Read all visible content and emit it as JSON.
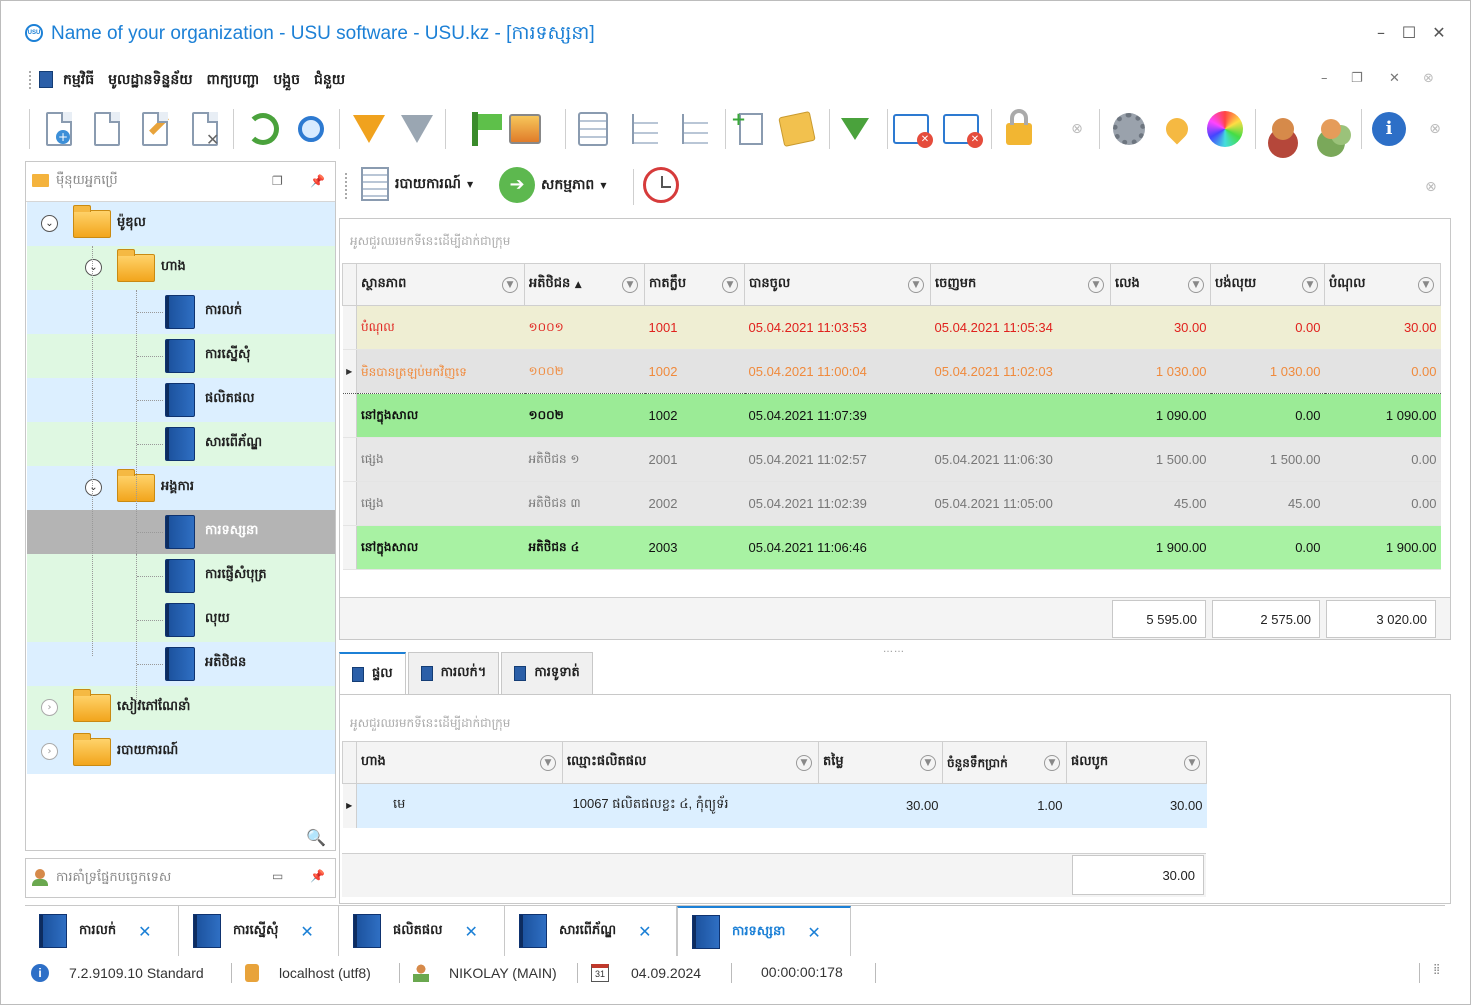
{
  "window": {
    "title": "Name of your organization - USU software - USU.kz - [ការទស្សនា]",
    "logo_text": "USU",
    "controls": [
      "–",
      "☐",
      "✕"
    ]
  },
  "menu": {
    "items": [
      "កម្មវិធី",
      "មូលដ្ឋានទិន្នន័យ",
      "ពាក្យបញ្ជា",
      "បង្អួច",
      "ជំនួយ"
    ],
    "mdi_controls": [
      "–",
      "❐",
      "✕"
    ]
  },
  "toolbar": {
    "icons": [
      "add-document-icon",
      "copy-document-icon",
      "edit-document-icon",
      "delete-document-icon",
      "refresh-icon",
      "search-icon",
      "filter-icon",
      "filter-check-icon",
      "flag-icon",
      "image-icon",
      "grid-columns-icon",
      "tree-expand-icon",
      "tree-collapse-icon",
      "add-column-icon",
      "notes-icon",
      "download-icon",
      "close-window-icon",
      "close-all-windows-icon",
      "lock-icon",
      "settings-icon",
      "location-icon",
      "color-wheel-icon",
      "user-settings-icon",
      "users-icon",
      "info-icon"
    ]
  },
  "left_panel": {
    "title": "ម៉ឺនុយអ្នកប្រើ",
    "tree": [
      {
        "label": "ម៉ូឌុល",
        "level": 0,
        "type": "folder",
        "expanded": true
      },
      {
        "label": "ហាង",
        "level": 1,
        "type": "folder",
        "expanded": true
      },
      {
        "label": "ការលក់",
        "level": 2,
        "type": "book"
      },
      {
        "label": "ការស្នើសុំ",
        "level": 2,
        "type": "book"
      },
      {
        "label": "ផលិតផល",
        "level": 2,
        "type": "book"
      },
      {
        "label": "សារពើភ័ណ្ឌ",
        "level": 2,
        "type": "book"
      },
      {
        "label": "អង្គការ",
        "level": 1,
        "type": "folder",
        "expanded": true
      },
      {
        "label": "ការទស្សនា",
        "level": 2,
        "type": "book",
        "selected": true
      },
      {
        "label": "ការផ្ញើសំបុត្រ",
        "level": 2,
        "type": "book"
      },
      {
        "label": "លុយ",
        "level": 2,
        "type": "book"
      },
      {
        "label": "អតិថិជន",
        "level": 2,
        "type": "book"
      },
      {
        "label": "សៀវភៅណែនាំ",
        "level": 0,
        "type": "folder",
        "expanded": false
      },
      {
        "label": "របាយការណ៍",
        "level": 0,
        "type": "folder",
        "expanded": false
      }
    ],
    "bottom_panel_title": "ការគាំទ្រផ្នែកបច្ចេកទេស"
  },
  "main_toolbar": {
    "reports_label": "របាយការណ៍",
    "actions_label": "សកម្មភាព"
  },
  "main_grid": {
    "group_hint": "អូសជួរឈរមកទីនេះដើម្បីដាក់ជាក្រុម",
    "columns": [
      "ស្ថានភាព",
      "អតិថិជន",
      "កាតក្លឹប",
      "បានចូល",
      "ចេញមក",
      "លេង",
      "បង់លុយ",
      "បំណុល"
    ],
    "sort_column": "អតិថិជន",
    "rows": [
      {
        "style": "cream",
        "status": "បំណុល",
        "client": "១០០១",
        "card": "1001",
        "in": "05.04.2021 11:03:53",
        "out": "05.04.2021 11:05:34",
        "played": "30.00",
        "paid": "0.00",
        "debt": "30.00"
      },
      {
        "style": "grey-sel",
        "status": "មិនបានត្រឡប់មកវិញទេ",
        "client": "១០០២",
        "card": "1002",
        "in": "05.04.2021 11:00:04",
        "out": "05.04.2021 11:02:03",
        "played": "1 030.00",
        "paid": "1 030.00",
        "debt": "0.00"
      },
      {
        "style": "green",
        "status": "នៅក្នុងសាល",
        "client": "១០០២",
        "card": "1002",
        "in": "05.04.2021 11:07:39",
        "out": "",
        "played": "1 090.00",
        "paid": "0.00",
        "debt": "1 090.00"
      },
      {
        "style": "grey",
        "status": "ផ្សេង",
        "client": "អតិថិជន ១",
        "card": "2001",
        "in": "05.04.2021 11:02:57",
        "out": "05.04.2021 11:06:30",
        "played": "1 500.00",
        "paid": "1 500.00",
        "debt": "0.00"
      },
      {
        "style": "grey",
        "status": "ផ្សេង",
        "client": "អតិថិជន ៣",
        "card": "2002",
        "in": "05.04.2021 11:02:39",
        "out": "05.04.2021 11:05:00",
        "played": "45.00",
        "paid": "45.00",
        "debt": "0.00"
      },
      {
        "style": "lgreen",
        "status": "នៅក្នុងសាល",
        "client": "អតិថិជន ៤",
        "card": "2003",
        "in": "05.04.2021 11:06:46",
        "out": "",
        "played": "1 900.00",
        "paid": "0.00",
        "debt": "1 900.00"
      }
    ],
    "totals": {
      "played": "5 595.00",
      "paid": "2 575.00",
      "debt": "3 020.00"
    }
  },
  "detail_tabs": [
    "ផ្ទល",
    "ការលក់។",
    "ការទូទាត់"
  ],
  "detail_grid": {
    "group_hint": "អូសជួរឈរមកទីនេះដើម្បីដាក់ជាក្រុម",
    "columns": [
      "ហាង",
      "ឈ្មោះផលិតផល",
      "តម្លៃ",
      "ចំនួនទឹកប្រាក់",
      "ផលបូក"
    ],
    "rows": [
      {
        "store": "មេ",
        "product": "10067 ផលិតផលខ្លះ ៤, កុំព្យូទ័រ",
        "price": "30.00",
        "qty": "1.00",
        "sum": "30.00"
      }
    ],
    "total": "30.00"
  },
  "doc_tabs": [
    {
      "label": "ការលក់",
      "active": false
    },
    {
      "label": "ការស្នើសុំ",
      "active": false
    },
    {
      "label": "ផលិតផល",
      "active": false
    },
    {
      "label": "សារពើភ័ណ្ឌ",
      "active": false
    },
    {
      "label": "ការទស្សនា",
      "active": true
    }
  ],
  "status_bar": {
    "version": "7.2.9109.10 Standard",
    "db": "localhost (utf8)",
    "user": "NIKOLAY (MAIN)",
    "calendar_day": "31",
    "date": "04.09.2024",
    "timer": "00:00:00:178"
  },
  "colors": {
    "accent": "#1c80d6",
    "row_cream": "#efeed3",
    "row_green": "#9beb96",
    "row_grey": "#e7e7e7",
    "debt_red": "#e0211d"
  }
}
